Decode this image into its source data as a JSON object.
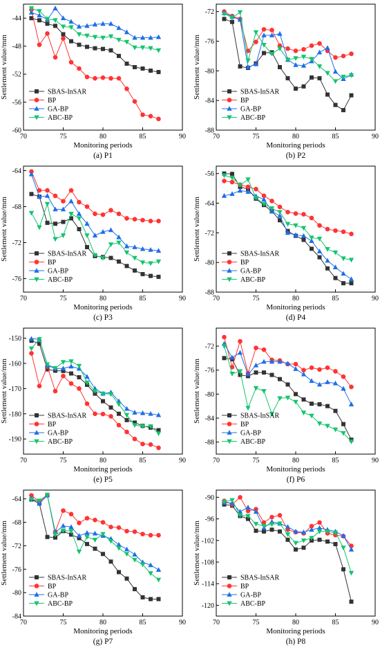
{
  "colors": {
    "SBAS-InSAR": "#333333",
    "BP": "#ff3333",
    "GA-BP": "#1e6fe8",
    "ABC-BP": "#14c46e"
  },
  "markers": {
    "SBAS-InSAR": "square",
    "BP": "circle",
    "GA-BP": "triangle-up",
    "ABC-BP": "triangle-down"
  },
  "chart_data": [
    {
      "type": "line",
      "caption": "(a) P1",
      "xlabel": "Monitoring periods",
      "ylabel": "Settlement value/mm",
      "xlim": [
        70,
        90
      ],
      "ylim": [
        -60,
        -42
      ],
      "xticks": [
        70,
        75,
        80,
        85,
        90
      ],
      "yticks": [
        -60,
        -56,
        -52,
        -48,
        -44
      ],
      "legend": "bottom-left",
      "x": [
        71,
        72,
        73,
        74,
        75,
        76,
        77,
        78,
        79,
        80,
        81,
        82,
        83,
        84,
        85,
        86,
        87
      ],
      "series": [
        {
          "name": "SBAS-InSAR",
          "values": [
            -44.0,
            -44.3,
            -44.8,
            -45.1,
            -46.3,
            -47.3,
            -47.8,
            -48.1,
            -48.3,
            -48.4,
            -48.6,
            -49.4,
            -50.5,
            -51.0,
            -51.2,
            -51.5,
            -51.7
          ]
        },
        {
          "name": "BP",
          "values": [
            -42.8,
            -47.8,
            -46.2,
            -49.6,
            -46.9,
            -50.3,
            -51.2,
            -52.4,
            -52.6,
            -52.5,
            -52.6,
            -52.6,
            -54.1,
            -55.9,
            -57.8,
            -58.0,
            -58.4
          ]
        },
        {
          "name": "GA-BP",
          "values": [
            -43.2,
            -43.6,
            -44.2,
            -42.6,
            -44.0,
            -44.5,
            -45.2,
            -45.1,
            -44.9,
            -44.8,
            -44.8,
            -45.4,
            -46.0,
            -46.8,
            -46.8,
            -46.8,
            -46.7
          ]
        },
        {
          "name": "ABC-BP",
          "values": [
            -42.6,
            -43.0,
            -44.1,
            -44.3,
            -45.2,
            -45.3,
            -46.3,
            -46.5,
            -46.7,
            -46.8,
            -46.6,
            -47.1,
            -47.4,
            -48.2,
            -48.2,
            -48.3,
            -48.6
          ]
        }
      ]
    },
    {
      "type": "line",
      "caption": "(b) P2",
      "xlabel": "Monitoring periods",
      "ylabel": "Settlement value/mm",
      "xlim": [
        70,
        90
      ],
      "ylim": [
        -88,
        -71
      ],
      "xticks": [
        70,
        75,
        80,
        85,
        90
      ],
      "yticks": [
        -88,
        -84,
        -80,
        -76,
        -72
      ],
      "legend": "bottom-left",
      "x": [
        71,
        72,
        73,
        74,
        75,
        76,
        77,
        78,
        79,
        80,
        81,
        82,
        83,
        84,
        85,
        86,
        87
      ],
      "series": [
        {
          "name": "SBAS-InSAR",
          "values": [
            -73.0,
            -73.4,
            -79.4,
            -79.6,
            -79.0,
            -77.6,
            -77.5,
            -79.5,
            -81.0,
            -82.4,
            -82.1,
            -80.9,
            -81.0,
            -83.2,
            -84.6,
            -85.3,
            -83.3
          ]
        },
        {
          "name": "BP",
          "values": [
            -72.0,
            -72.6,
            -73.0,
            -77.3,
            -76.1,
            -74.4,
            -74.5,
            -76.6,
            -77.0,
            -77.3,
            -77.1,
            -76.6,
            -76.3,
            -77.3,
            -78.2,
            -78.0,
            -77.7
          ]
        },
        {
          "name": "GA-BP",
          "values": [
            -72.2,
            -72.7,
            -73.1,
            -79.5,
            -79.1,
            -75.2,
            -75.2,
            -75.0,
            -78.5,
            -79.2,
            -79.3,
            -78.7,
            -77.5,
            -76.9,
            -80.1,
            -81.1,
            -80.5
          ]
        },
        {
          "name": "ABC-BP",
          "values": [
            -72.3,
            -72.8,
            -72.1,
            -78.6,
            -74.8,
            -76.5,
            -77.7,
            -77.0,
            -78.5,
            -78.3,
            -78.1,
            -78.4,
            -79.4,
            -80.3,
            -81.4,
            -80.8,
            -80.6
          ]
        }
      ]
    },
    {
      "type": "line",
      "caption": "(c) P3",
      "xlabel": "Monitoring periods",
      "ylabel": "Settlement value/mm",
      "xlim": [
        70,
        90
      ],
      "ylim": [
        -77.5,
        -63.5
      ],
      "xticks": [
        70,
        75,
        80,
        85,
        90
      ],
      "yticks": [
        -76,
        -72,
        -68,
        -64
      ],
      "legend": "bottom-left",
      "x": [
        71,
        72,
        73,
        74,
        75,
        76,
        77,
        78,
        79,
        80,
        81,
        82,
        83,
        84,
        85,
        86,
        87
      ],
      "series": [
        {
          "name": "SBAS-InSAR",
          "values": [
            -66.6,
            -66.9,
            -69.8,
            -69.9,
            -69.7,
            -69.3,
            -70.5,
            -72.5,
            -73.5,
            -73.6,
            -73.7,
            -74.1,
            -74.6,
            -75.1,
            -75.5,
            -75.7,
            -75.8
          ]
        },
        {
          "name": "BP",
          "values": [
            -64.1,
            -66.2,
            -66.2,
            -66.8,
            -67.4,
            -66.2,
            -67.5,
            -68.0,
            -68.8,
            -68.9,
            -68.4,
            -68.8,
            -69.3,
            -69.4,
            -69.5,
            -69.6,
            -69.6
          ]
        },
        {
          "name": "GA-BP",
          "values": [
            -64.4,
            -66.9,
            -66.8,
            -68.3,
            -68.3,
            -67.4,
            -68.8,
            -69.9,
            -71.2,
            -70.8,
            -70.6,
            -71.4,
            -72.4,
            -72.5,
            -72.7,
            -72.8,
            -72.9
          ]
        },
        {
          "name": "ABC-BP",
          "values": [
            -68.7,
            -70.3,
            -67.7,
            -71.6,
            -71.2,
            -68.8,
            -69.3,
            -71.2,
            -73.4,
            -73.7,
            -72.2,
            -72.0,
            -73.1,
            -73.7,
            -74.2,
            -74.3,
            -74.1
          ]
        }
      ]
    },
    {
      "type": "line",
      "caption": "(d) P4",
      "xlabel": "Monitoring periods",
      "ylabel": "Settlement value/mm",
      "xlim": [
        70,
        90
      ],
      "ylim": [
        -88,
        -54
      ],
      "xticks": [
        70,
        75,
        80,
        85,
        90
      ],
      "yticks": [
        -88,
        -80,
        -72,
        -64,
        -56
      ],
      "legend": "bottom-left",
      "x": [
        71,
        72,
        73,
        74,
        75,
        76,
        77,
        78,
        79,
        80,
        81,
        82,
        83,
        84,
        85,
        86,
        87
      ],
      "series": [
        {
          "name": "SBAS-InSAR",
          "values": [
            -56.0,
            -56.1,
            -59.6,
            -60.2,
            -62.8,
            -64.5,
            -66.2,
            -68.6,
            -71.5,
            -72.8,
            -73.9,
            -76.3,
            -78.6,
            -81.6,
            -84.2,
            -85.6,
            -85.6
          ]
        },
        {
          "name": "BP",
          "values": [
            -58.0,
            -58.3,
            -59.0,
            -59.6,
            -60.2,
            -62.0,
            -63.4,
            -65.0,
            -66.4,
            -66.8,
            -67.0,
            -68.0,
            -70.0,
            -71.0,
            -71.4,
            -71.7,
            -72.3
          ]
        },
        {
          "name": "GA-BP",
          "values": [
            -62.0,
            -61.5,
            -60.6,
            -60.9,
            -62.1,
            -63.0,
            -66.2,
            -67.4,
            -72.0,
            -72.6,
            -72.8,
            -74.2,
            -77.0,
            -79.5,
            -81.3,
            -83.0,
            -84.5
          ]
        },
        {
          "name": "ABC-BP",
          "values": [
            -56.5,
            -57.1,
            -59.1,
            -57.6,
            -62.6,
            -64.2,
            -65.4,
            -66.4,
            -69.6,
            -70.0,
            -70.7,
            -73.3,
            -73.6,
            -76.4,
            -77.3,
            -78.9,
            -79.3
          ]
        }
      ]
    },
    {
      "type": "line",
      "caption": "(e) P5",
      "xlabel": "Monitoring periods",
      "ylabel": "Settlement value/mm",
      "xlim": [
        70,
        90
      ],
      "ylim": [
        -196,
        -146
      ],
      "xticks": [
        70,
        75,
        80,
        85,
        90
      ],
      "yticks": [
        -190,
        -180,
        -170,
        -160,
        -150
      ],
      "legend": "bottom-left",
      "x": [
        71,
        72,
        73,
        74,
        75,
        76,
        77,
        78,
        79,
        80,
        81,
        82,
        83,
        84,
        85,
        86,
        87
      ],
      "series": [
        {
          "name": "SBAS-InSAR",
          "values": [
            -151.0,
            -152.2,
            -162.4,
            -162.9,
            -163.0,
            -164.0,
            -165.5,
            -168.5,
            -172.0,
            -175.0,
            -177.5,
            -180.0,
            -182.5,
            -183.5,
            -184.8,
            -185.5,
            -186.5
          ]
        },
        {
          "name": "BP",
          "values": [
            -156.0,
            -169.0,
            -161.2,
            -171.0,
            -165.0,
            -168.0,
            -170.0,
            -176.0,
            -180.0,
            -180.1,
            -181.0,
            -184.5,
            -187.2,
            -190.0,
            -192.0,
            -192.2,
            -193.5
          ]
        },
        {
          "name": "GA-BP",
          "values": [
            -150.2,
            -150.4,
            -160.9,
            -162.0,
            -162.0,
            -161.2,
            -162.1,
            -165.3,
            -170.0,
            -172.0,
            -171.5,
            -175.0,
            -178.0,
            -179.5,
            -179.7,
            -180.0,
            -180.5
          ]
        },
        {
          "name": "ABC-BP",
          "values": [
            -154.1,
            -150.4,
            -160.4,
            -161.9,
            -159.5,
            -159.2,
            -161.0,
            -167.6,
            -171.0,
            -172.0,
            -172.2,
            -176.2,
            -180.5,
            -184.5,
            -185.0,
            -185.0,
            -187.8
          ]
        }
      ]
    },
    {
      "type": "line",
      "caption": "(f) P6",
      "xlabel": "Monitoring periods",
      "ylabel": "Settlement value/mm",
      "xlim": [
        70,
        90
      ],
      "ylim": [
        -90,
        -69
      ],
      "xticks": [
        70,
        75,
        80,
        85,
        90
      ],
      "yticks": [
        -88,
        -84,
        -80,
        -76,
        -72
      ],
      "legend": "bottom-left",
      "x": [
        71,
        72,
        73,
        74,
        75,
        76,
        77,
        78,
        79,
        80,
        81,
        82,
        83,
        84,
        85,
        86,
        87
      ],
      "series": [
        {
          "name": "SBAS-InSAR",
          "values": [
            -74.0,
            -74.2,
            -76.8,
            -77.0,
            -76.4,
            -76.4,
            -76.8,
            -77.5,
            -78.4,
            -80.0,
            -80.9,
            -81.6,
            -81.7,
            -82.0,
            -82.8,
            -85.0,
            -87.6
          ]
        },
        {
          "name": "BP",
          "values": [
            -70.5,
            -75.5,
            -71.2,
            -76.5,
            -72.3,
            -72.6,
            -74.3,
            -74.4,
            -75.0,
            -75.0,
            -76.0,
            -75.6,
            -75.9,
            -75.6,
            -76.2,
            -77.1,
            -78.8
          ]
        },
        {
          "name": "GA-BP",
          "values": [
            -71.6,
            -73.9,
            -73.1,
            -76.7,
            -75.2,
            -74.6,
            -74.6,
            -74.6,
            -74.9,
            -75.8,
            -76.7,
            -77.8,
            -78.4,
            -78.0,
            -78.2,
            -79.1,
            -81.7
          ]
        },
        {
          "name": "ABC-BP",
          "values": [
            -72.0,
            -76.6,
            -76.2,
            -82.3,
            -79.0,
            -79.5,
            -83.3,
            -80.7,
            -80.6,
            -81.3,
            -83.1,
            -83.6,
            -84.9,
            -85.3,
            -85.9,
            -86.5,
            -87.9
          ]
        }
      ]
    },
    {
      "type": "line",
      "caption": "(g) P7",
      "xlabel": "Monitoring periods",
      "ylabel": "Settlement value/mm",
      "xlim": [
        70,
        90
      ],
      "ylim": [
        -84,
        -62.5
      ],
      "xticks": [
        70,
        75,
        80,
        85,
        90
      ],
      "yticks": [
        -84,
        -80,
        -76,
        -72,
        -68,
        -64
      ],
      "legend": "bottom-left",
      "x": [
        71,
        72,
        73,
        74,
        75,
        76,
        77,
        78,
        79,
        80,
        81,
        82,
        83,
        84,
        85,
        86,
        87
      ],
      "series": [
        {
          "name": "SBAS-InSAR",
          "values": [
            -64.1,
            -64.8,
            -70.5,
            -70.6,
            -69.5,
            -70.1,
            -70.7,
            -71.7,
            -72.5,
            -73.4,
            -74.7,
            -76.5,
            -77.6,
            -79.4,
            -80.8,
            -81.1,
            -81.1
          ]
        },
        {
          "name": "BP",
          "values": [
            -63.4,
            -64.5,
            -63.4,
            -69.6,
            -66.0,
            -66.6,
            -68.1,
            -67.3,
            -67.6,
            -68.0,
            -68.8,
            -68.9,
            -69.5,
            -69.6,
            -70.0,
            -70.2,
            -70.2
          ]
        },
        {
          "name": "GA-BP",
          "values": [
            -63.9,
            -64.8,
            -63.4,
            -69.7,
            -68.6,
            -68.8,
            -70.3,
            -69.8,
            -69.9,
            -70.3,
            -70.8,
            -71.8,
            -72.6,
            -73.5,
            -74.8,
            -75.3,
            -76.1
          ]
        },
        {
          "name": "ABC-BP",
          "values": [
            -64.1,
            -64.3,
            -63.3,
            -70.1,
            -69.4,
            -69.5,
            -73.0,
            -70.5,
            -71.0,
            -70.0,
            -71.2,
            -72.4,
            -73.4,
            -74.4,
            -75.2,
            -76.7,
            -77.8
          ]
        }
      ]
    },
    {
      "type": "line",
      "caption": "(h) P8",
      "xlabel": "Monitoring periods",
      "ylabel": "Settlement value/mm",
      "xlim": [
        70,
        90
      ],
      "ylim": [
        -123,
        -88
      ],
      "xticks": [
        70,
        75,
        80,
        85,
        90
      ],
      "yticks": [
        -120,
        -114,
        -108,
        -102,
        -96,
        -90
      ],
      "legend": "bottom-left",
      "x": [
        71,
        72,
        73,
        74,
        75,
        76,
        77,
        78,
        79,
        80,
        81,
        82,
        83,
        84,
        85,
        86,
        87
      ],
      "series": [
        {
          "name": "SBAS-InSAR",
          "values": [
            -92.0,
            -92.3,
            -95.2,
            -96.0,
            -99.3,
            -99.5,
            -99.0,
            -99.5,
            -101.8,
            -104.5,
            -104.0,
            -102.0,
            -101.8,
            -102.3,
            -103.0,
            -110.0,
            -119.0
          ]
        },
        {
          "name": "BP",
          "values": [
            -91.0,
            -92.0,
            -90.0,
            -93.8,
            -93.3,
            -97.0,
            -95.5,
            -95.0,
            -99.0,
            -99.7,
            -100.0,
            -98.0,
            -97.0,
            -100.0,
            -100.5,
            -100.8,
            -103.5
          ]
        },
        {
          "name": "GA-BP",
          "values": [
            -91.5,
            -91.6,
            -94.0,
            -92.8,
            -94.0,
            -98.5,
            -96.8,
            -97.3,
            -98.2,
            -99.5,
            -99.7,
            -99.0,
            -98.5,
            -99.0,
            -99.5,
            -100.7,
            -104.5
          ]
        },
        {
          "name": "ABC-BP",
          "values": [
            -91.2,
            -90.8,
            -95.0,
            -95.2,
            -97.4,
            -98.0,
            -97.5,
            -97.3,
            -100.3,
            -102.7,
            -102.0,
            -101.3,
            -99.5,
            -99.5,
            -99.8,
            -104.0,
            -111.0
          ]
        }
      ]
    }
  ]
}
